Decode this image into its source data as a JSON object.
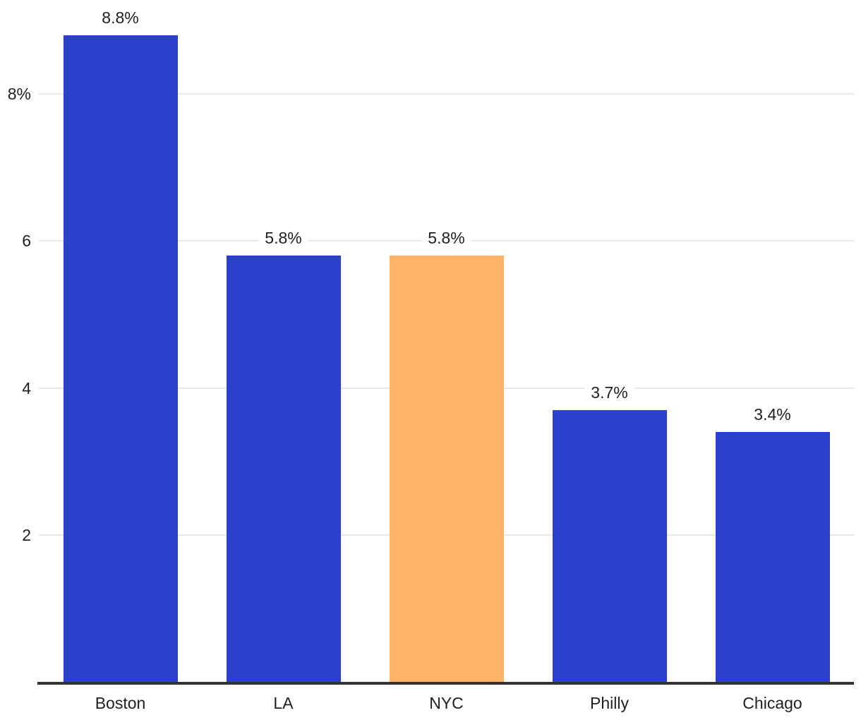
{
  "chart_data": {
    "type": "bar",
    "title": "",
    "xlabel": "",
    "ylabel": "",
    "categories": [
      "Boston",
      "LA",
      "NYC",
      "Philly",
      "Chicago"
    ],
    "values": [
      8.8,
      5.8,
      5.8,
      3.7,
      3.4
    ],
    "value_labels": [
      "8.8%",
      "5.8%",
      "5.8%",
      "3.7%",
      "3.4%"
    ],
    "y_ticks": [
      {
        "value": 2,
        "label": "2"
      },
      {
        "value": 4,
        "label": "4"
      },
      {
        "value": 6,
        "label": "6"
      },
      {
        "value": 8,
        "label": "8%"
      }
    ],
    "ylim": [
      0,
      9.28
    ],
    "grid": true,
    "legend": false,
    "highlight_index": 2,
    "colors": {
      "bar_default": "#2b41ce",
      "bar_highlight": "#ffb469",
      "gridline": "#e8e8e8",
      "axis_line": "#333333",
      "text": "#1f1f1f",
      "background": "#ffffff"
    }
  }
}
